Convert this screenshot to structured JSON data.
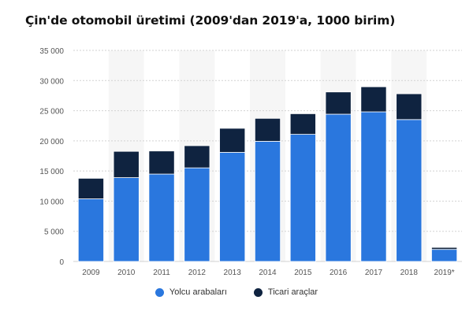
{
  "title": "Çin'de otomobil üretimi (2009'dan 2019'a, 1000 birim)",
  "chart_data": {
    "type": "bar",
    "stacked": true,
    "title": "Çin'de otomobil üretimi (2009'dan 2019'a, 1000 birim)",
    "xlabel": "",
    "ylabel": "",
    "categories": [
      "2009",
      "2010",
      "2011",
      "2012",
      "2013",
      "2014",
      "2015",
      "2016",
      "2017",
      "2018",
      "2019*"
    ],
    "series": [
      {
        "name": "Yolcu arabaları",
        "color": "#2a77de",
        "values": [
          10380,
          13900,
          14490,
          15520,
          18090,
          19920,
          21080,
          24420,
          24810,
          23530,
          2000
        ]
      },
      {
        "name": "Ticari araçlar",
        "color": "#0f2340",
        "values": [
          3410,
          4360,
          3830,
          3680,
          3990,
          3810,
          3420,
          3690,
          4160,
          4280,
          330
        ]
      }
    ],
    "ylim": [
      0,
      35000
    ],
    "yticks": [
      0,
      5000,
      10000,
      15000,
      20000,
      25000,
      30000,
      35000
    ],
    "ytick_labels": [
      "0",
      "5 000",
      "10 000",
      "15 000",
      "20 000",
      "25 000",
      "30 000",
      "35 000"
    ],
    "grid": true,
    "legend_position": "bottom"
  }
}
